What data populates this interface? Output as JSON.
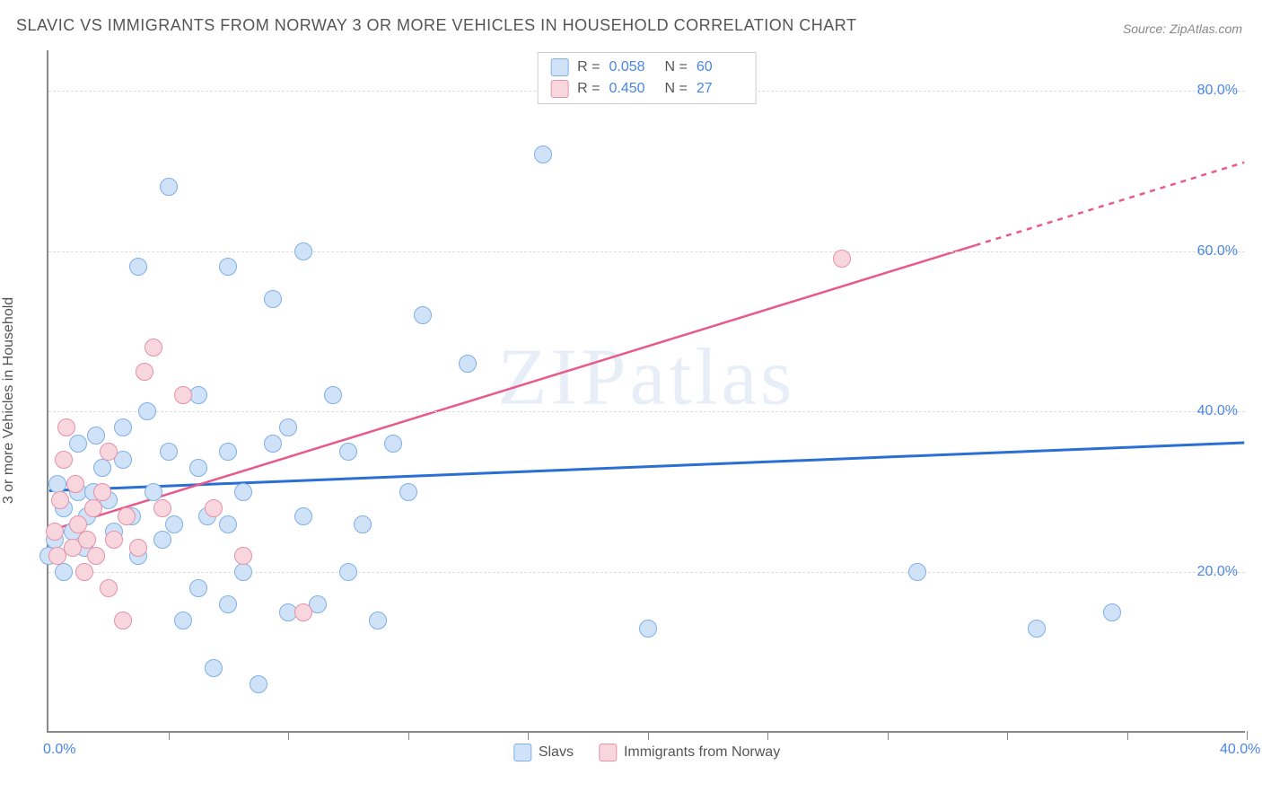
{
  "title": "SLAVIC VS IMMIGRANTS FROM NORWAY 3 OR MORE VEHICLES IN HOUSEHOLD CORRELATION CHART",
  "source": "Source: ZipAtlas.com",
  "watermark": "ZIPatlas",
  "ylabel": "3 or more Vehicles in Household",
  "chart": {
    "type": "scatter",
    "background_color": "#ffffff",
    "grid_color": "#dddddd",
    "axis_color": "#888888",
    "xlim": [
      0,
      40
    ],
    "ylim": [
      0,
      85
    ],
    "yticks": [
      {
        "v": 20,
        "label": "20.0%"
      },
      {
        "v": 40,
        "label": "40.0%"
      },
      {
        "v": 60,
        "label": "60.0%"
      },
      {
        "v": 80,
        "label": "80.0%"
      }
    ],
    "xtick_marks": [
      4,
      8,
      12,
      16,
      20,
      24,
      28,
      32,
      36,
      40
    ],
    "xtick_labels": [
      {
        "v": 0,
        "label": "0.0%"
      },
      {
        "v": 40,
        "label": "40.0%"
      }
    ],
    "series": [
      {
        "id": "slavs",
        "label": "Slavs",
        "fill": "#cfe2f7",
        "stroke": "#7fb0e6",
        "marker_radius": 10,
        "R": "0.058",
        "N": "60",
        "trend": {
          "y_at_x0": 30,
          "y_at_xmax": 36,
          "color": "#2a6fd6",
          "width": 3,
          "dash_from_x": null
        },
        "points": [
          [
            0.0,
            22
          ],
          [
            0.2,
            24
          ],
          [
            0.3,
            31
          ],
          [
            0.5,
            20
          ],
          [
            0.5,
            28
          ],
          [
            0.8,
            25
          ],
          [
            1.0,
            30
          ],
          [
            1.0,
            36
          ],
          [
            1.2,
            23
          ],
          [
            1.3,
            27
          ],
          [
            1.5,
            30
          ],
          [
            1.6,
            37
          ],
          [
            1.8,
            33
          ],
          [
            2.0,
            29
          ],
          [
            2.2,
            25
          ],
          [
            2.5,
            34
          ],
          [
            2.5,
            38
          ],
          [
            2.8,
            27
          ],
          [
            3.0,
            22
          ],
          [
            3.0,
            58
          ],
          [
            3.3,
            40
          ],
          [
            3.5,
            30
          ],
          [
            3.8,
            24
          ],
          [
            4.0,
            35
          ],
          [
            4.0,
            68
          ],
          [
            4.2,
            26
          ],
          [
            4.5,
            14
          ],
          [
            5.0,
            18
          ],
          [
            5.0,
            33
          ],
          [
            5.0,
            42
          ],
          [
            5.3,
            27
          ],
          [
            5.5,
            8
          ],
          [
            6.0,
            16
          ],
          [
            6.0,
            26
          ],
          [
            6.0,
            35
          ],
          [
            6.0,
            58
          ],
          [
            6.5,
            20
          ],
          [
            6.5,
            30
          ],
          [
            7.0,
            6
          ],
          [
            7.5,
            36
          ],
          [
            7.5,
            54
          ],
          [
            8.0,
            15
          ],
          [
            8.0,
            38
          ],
          [
            8.5,
            27
          ],
          [
            8.5,
            60
          ],
          [
            9.0,
            16
          ],
          [
            9.5,
            42
          ],
          [
            10.0,
            35
          ],
          [
            10.0,
            20
          ],
          [
            10.5,
            26
          ],
          [
            11.0,
            14
          ],
          [
            11.5,
            36
          ],
          [
            12.0,
            30
          ],
          [
            12.5,
            52
          ],
          [
            14.0,
            46
          ],
          [
            16.5,
            72
          ],
          [
            20.0,
            13
          ],
          [
            29.0,
            20
          ],
          [
            33.0,
            13
          ],
          [
            35.5,
            15
          ]
        ]
      },
      {
        "id": "norway",
        "label": "Immigrants from Norway",
        "fill": "#f7d6de",
        "stroke": "#e890a8",
        "marker_radius": 10,
        "R": "0.450",
        "N": "27",
        "trend": {
          "y_at_x0": 25,
          "y_at_xmax": 71,
          "color": "#e75a8a",
          "width": 2.5,
          "dash_from_x": 31
        },
        "points": [
          [
            0.2,
            25
          ],
          [
            0.3,
            22
          ],
          [
            0.4,
            29
          ],
          [
            0.5,
            34
          ],
          [
            0.6,
            38
          ],
          [
            0.8,
            23
          ],
          [
            0.9,
            31
          ],
          [
            1.0,
            26
          ],
          [
            1.2,
            20
          ],
          [
            1.3,
            24
          ],
          [
            1.5,
            28
          ],
          [
            1.6,
            22
          ],
          [
            1.8,
            30
          ],
          [
            2.0,
            18
          ],
          [
            2.0,
            35
          ],
          [
            2.2,
            24
          ],
          [
            2.5,
            14
          ],
          [
            2.6,
            27
          ],
          [
            3.0,
            23
          ],
          [
            3.2,
            45
          ],
          [
            3.5,
            48
          ],
          [
            3.8,
            28
          ],
          [
            4.5,
            42
          ],
          [
            5.5,
            28
          ],
          [
            6.5,
            22
          ],
          [
            8.5,
            15
          ],
          [
            26.5,
            59
          ]
        ]
      }
    ]
  },
  "colors": {
    "tick_text": "#4a86e8",
    "body_text": "#555555"
  }
}
